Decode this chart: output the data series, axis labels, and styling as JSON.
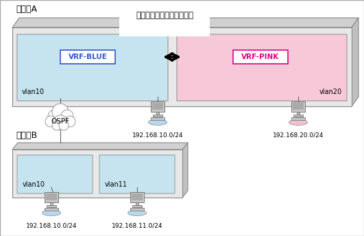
{
  "bg_color": "#f0f0f0",
  "router_a_label": "ルータA",
  "router_b_label": "ルータB",
  "static_routing_label": "スタティックルーティング",
  "vrf_blue_label": "VRF-BLUE",
  "vrf_pink_label": "VRF-PINK",
  "vlan10_label": "vlan10",
  "vlan11_label": "vlan11",
  "vlan20_label": "vlan20",
  "ospf_label": "OSPF",
  "net_top_blue": "192.168.10.0/24",
  "net_top_pink": "192.168.20.0/24",
  "net_bot_left": "192.168.10.0/24",
  "net_bot_right": "192.168.11.0/24",
  "blue_color": "#c5e4f0",
  "pink_color": "#f7c8d8",
  "router_face_color": "#e8e8e8",
  "router_top_color": "#d0d0d0",
  "router_side_color": "#c0c0c0",
  "vlan_b_color": "#c5e4f0",
  "border_blue": "#3355cc",
  "border_pink": "#dd0088",
  "text_color": "#000000",
  "white": "#ffffff",
  "gray_border": "#888888",
  "line_color": "#666666"
}
